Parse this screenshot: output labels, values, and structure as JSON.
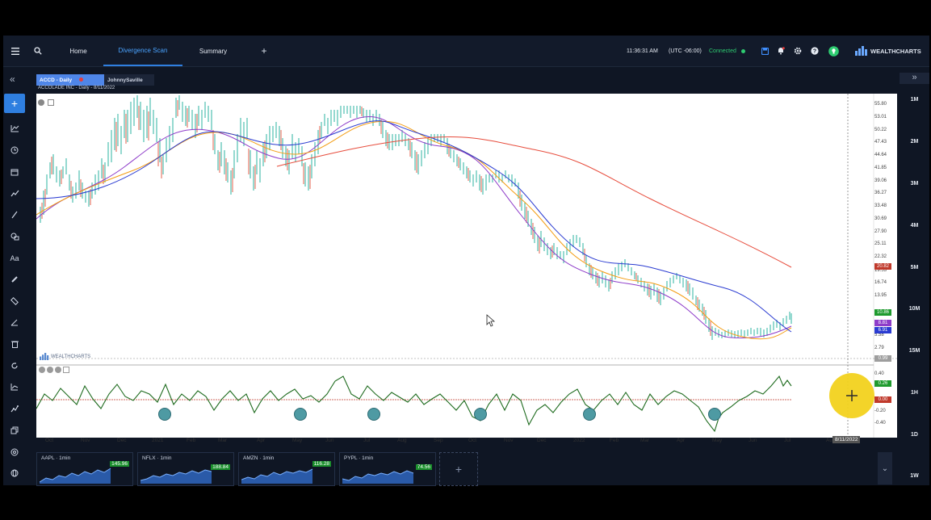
{
  "topbar": {
    "menu_icon": "hamburger-icon",
    "search_icon": "search-icon",
    "tabs": [
      {
        "label": "Home"
      },
      {
        "label": "Divergence Scan"
      },
      {
        "label": "Summary"
      }
    ],
    "add_tab_icon": "plus-icon",
    "time": "11:36:31 AM",
    "timezone": "(UTC -06:00)",
    "connection": "Connected",
    "brand": "WEALTHCHARTS"
  },
  "leftbar": {
    "collapse_label": "«",
    "tools": [
      "plus-icon",
      "indicator-icon",
      "clock-icon",
      "calendar-icon",
      "trend-icon",
      "line-tool-icon",
      "shapes-icon",
      "text-tool-icon",
      "brush-icon",
      "ruler-icon",
      "fib-icon",
      "trash-icon",
      "refresh-icon",
      "chart-icon",
      "chart-line-icon",
      "copy-icon",
      "target-icon",
      "globe-icon"
    ],
    "text_tool_label": "Aa"
  },
  "rightbar": {
    "expand_label": "»",
    "timeframes": [
      "1M",
      "2M",
      "3M",
      "4M",
      "5M",
      "10M",
      "15M",
      "1H",
      "1D",
      "1W"
    ]
  },
  "chart_tabs": [
    {
      "label": "ACCD - Daily"
    },
    {
      "label": "JohnnySaville"
    }
  ],
  "chart": {
    "title": "ACCOLADE INC - Daily - 8/11/2022",
    "watermark": "WEALTHCHARTS",
    "y_ticks": [
      "55.80",
      "53.01",
      "50.22",
      "47.43",
      "44.64",
      "41.85",
      "39.06",
      "36.27",
      "33.48",
      "30.69",
      "27.90",
      "25.11",
      "22.32",
      "19.53",
      "16.74",
      "13.95",
      "5.58",
      "2.79"
    ],
    "price_tags": [
      {
        "label": "20.82",
        "color": "#c0392b"
      },
      {
        "label": "10.86",
        "color": "#1e9a2e"
      },
      {
        "label": "8.81",
        "color": "#8e3cc9"
      },
      {
        "label": "6.91",
        "color": "#2a3bd1"
      },
      {
        "label": "0.99",
        "color": "#9e9e9e"
      }
    ],
    "osc_ticks": [
      "0.40",
      "0.20",
      "-0.20",
      "-0.40"
    ],
    "osc_tags": [
      {
        "label": "0.26",
        "color": "#1e9a2e"
      },
      {
        "label": "0.00",
        "color": "#c0392b"
      }
    ],
    "x_ticks": [
      "Oct",
      "Nov",
      "Dec",
      "2021",
      "Feb",
      "Mar",
      "Apr",
      "May",
      "Jun",
      "Jul",
      "Aug",
      "Sep",
      "Oct",
      "Nov",
      "Dec",
      "2022",
      "Feb",
      "Mar",
      "Apr",
      "May",
      "Jun",
      "Jul",
      "Aug"
    ],
    "date_label": "8/11/2022"
  },
  "watchlist": [
    {
      "title": "AAPL · 1min",
      "price": "145.96"
    },
    {
      "title": "NFLX · 1min",
      "price": "188.84"
    },
    {
      "title": "AMZN · 1min",
      "price": "116.28"
    },
    {
      "title": "PYPL · 1min",
      "price": "74.56"
    }
  ],
  "add_panel": "+",
  "expand_down_label": "⌄"
}
